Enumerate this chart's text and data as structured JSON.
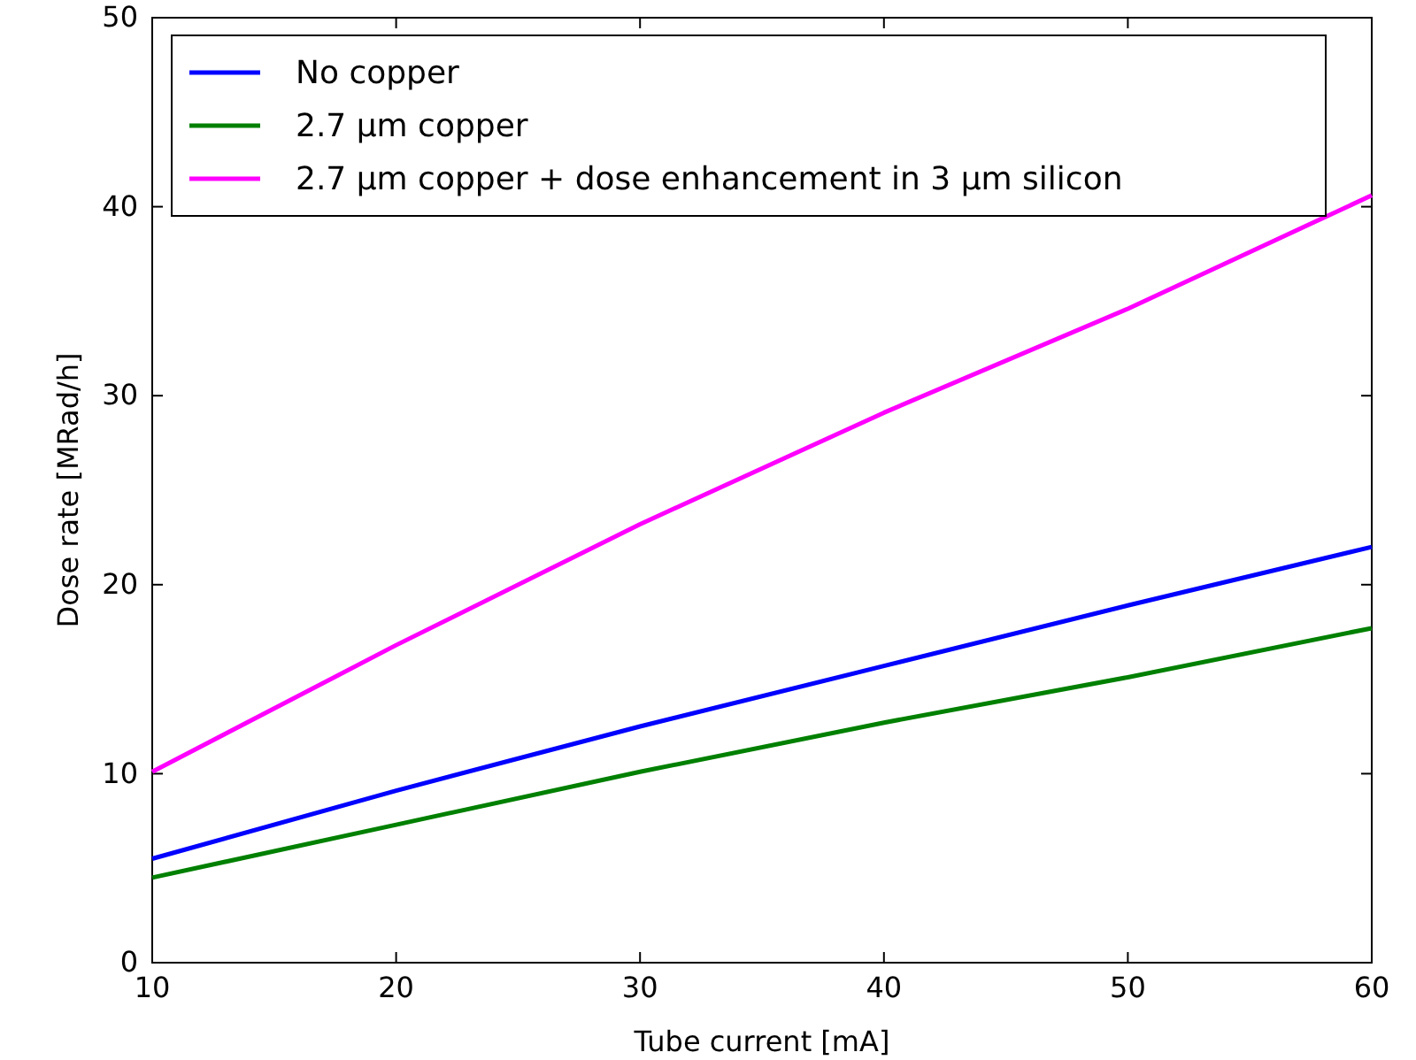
{
  "chart_data": {
    "type": "line",
    "xlabel": "Tube current [mA]",
    "ylabel": "Dose rate [MRad/h]",
    "x": [
      10,
      20,
      30,
      40,
      50,
      60
    ],
    "series": [
      {
        "name": "No copper",
        "color": "#0000ff",
        "values": [
          5.5,
          9.1,
          12.5,
          15.7,
          18.9,
          22.0
        ]
      },
      {
        "name": "2.7 μm copper",
        "color": "#008000",
        "values": [
          4.5,
          7.3,
          10.1,
          12.7,
          15.1,
          17.7
        ]
      },
      {
        "name": "2.7 μm copper + dose enhancement in 3 μm silicon",
        "color": "#ff00ff",
        "values": [
          10.1,
          16.8,
          23.2,
          29.1,
          34.6,
          40.6
        ]
      }
    ],
    "xlim": [
      10,
      60
    ],
    "xticks": [
      10,
      20,
      30,
      40,
      50,
      60
    ],
    "ylim": [
      0,
      50
    ],
    "yticks": [
      0,
      10,
      20,
      30,
      40,
      50
    ],
    "legend": "top left",
    "grid": false,
    "marker": "none",
    "line_style": "solid"
  }
}
